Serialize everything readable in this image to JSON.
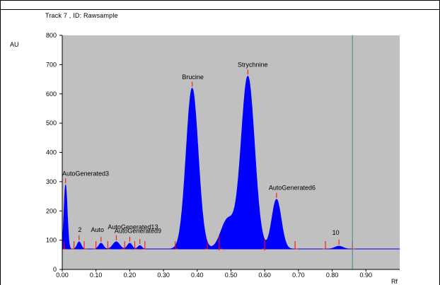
{
  "chart_data": {
    "type": "area",
    "title": "Track  7 , ID: Rawsample",
    "ylabel": "AU",
    "xlabel": "Rf",
    "xlim": [
      0.0,
      1.0
    ],
    "ylim": [
      0,
      800
    ],
    "x_ticks": [
      "0.00",
      "0.10",
      "0.20",
      "0.30",
      "0.40",
      "0.50",
      "0.60",
      "0.70",
      "0.80",
      "0.90"
    ],
    "x_tick_values": [
      0.0,
      0.1,
      0.2,
      0.3,
      0.4,
      0.5,
      0.6,
      0.7,
      0.8,
      0.9
    ],
    "y_ticks": [
      "0",
      "100",
      "200",
      "300",
      "400",
      "500",
      "600",
      "700",
      "800"
    ],
    "y_tick_values": [
      0,
      100,
      200,
      300,
      400,
      500,
      600,
      700,
      800
    ],
    "baseline": 70,
    "cursor_x": 0.86,
    "colors": {
      "plot_bg": "#c0c0c0",
      "fill": "#0000ff",
      "markers": "#ff0000",
      "cursor": "#3c8c8c"
    },
    "peaks": [
      {
        "label": "AutoGenerated3",
        "rf": 0.01,
        "height": 290,
        "sigma": 0.005
      },
      {
        "label": "2",
        "rf": 0.05,
        "height": 95,
        "sigma": 0.006
      },
      {
        "label": "",
        "rf": 0.115,
        "height": 90,
        "sigma": 0.007
      },
      {
        "label": "",
        "rf": 0.16,
        "height": 95,
        "sigma": 0.01
      },
      {
        "label": "",
        "rf": 0.2,
        "height": 90,
        "sigma": 0.007
      },
      {
        "label": "",
        "rf": 0.23,
        "height": 82,
        "sigma": 0.006
      },
      {
        "label": "Brucine",
        "rf": 0.385,
        "height": 620,
        "sigma": 0.018
      },
      {
        "label": "Strychnine",
        "rf": 0.55,
        "height": 660,
        "sigma": 0.02
      },
      {
        "label": "AutoGenerated6",
        "rf": 0.635,
        "height": 240,
        "sigma": 0.014
      },
      {
        "label": "10",
        "rf": 0.82,
        "height": 80,
        "sigma": 0.012
      }
    ],
    "shoulder": {
      "rf": 0.49,
      "height": 170,
      "sigma": 0.02
    },
    "annotations": [
      {
        "text": "AutoGenerated3",
        "rf": 0.0,
        "au": 320
      },
      {
        "text": "2",
        "rf": 0.047,
        "au": 128
      },
      {
        "text": "Auto",
        "rf": 0.085,
        "au": 128
      },
      {
        "text": "AutoGenerated13",
        "rf": 0.135,
        "au": 138
      },
      {
        "text": "AutoGenerated9",
        "rf": 0.155,
        "au": 125
      },
      {
        "text": "Brucine",
        "rf": 0.355,
        "au": 650
      },
      {
        "text": "Strychnine",
        "rf": 0.52,
        "au": 692
      },
      {
        "text": "AutoGenerated6",
        "rf": 0.612,
        "au": 272
      },
      {
        "text": "10",
        "rf": 0.8,
        "au": 118
      }
    ],
    "boundaries": [
      0.005,
      0.035,
      0.065,
      0.1,
      0.135,
      0.185,
      0.215,
      0.245,
      0.335,
      0.43,
      0.465,
      0.6,
      0.69,
      0.78,
      0.86
    ]
  }
}
